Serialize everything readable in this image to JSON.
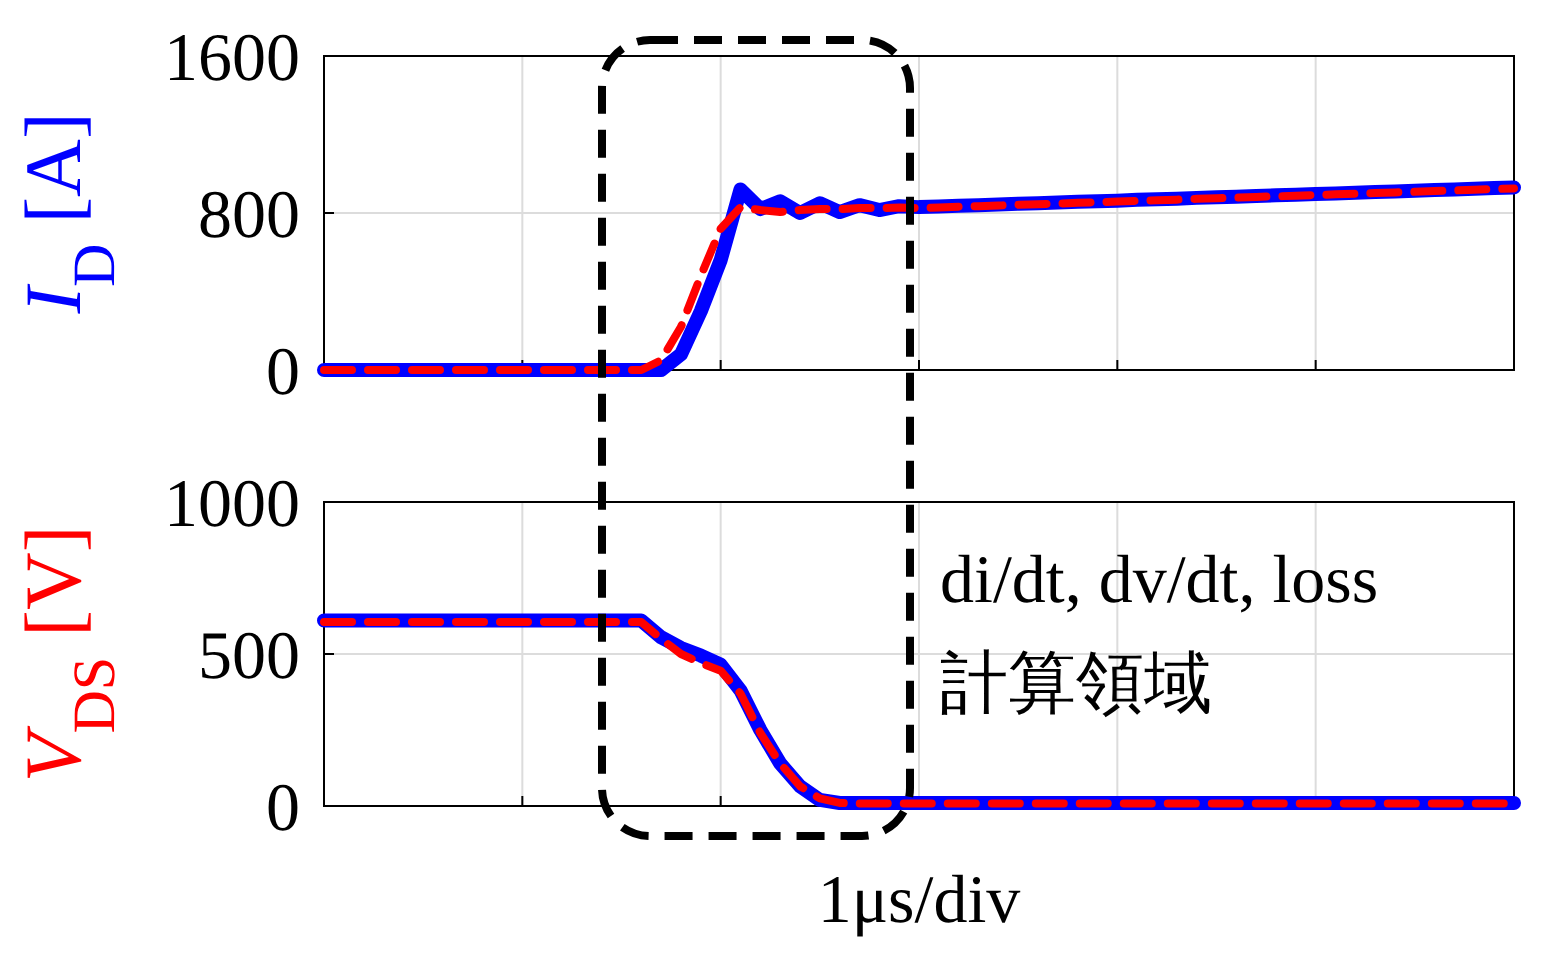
{
  "chart_data": [
    {
      "type": "line",
      "ylabel": "*I*$_{D}$ [A]",
      "categories": [
        null,
        null,
        null,
        null,
        null,
        null,
        null,
        null,
        null,
        null,
        null,
        null,
        null,
        null,
        null,
        null,
        null,
        null,
        null,
        null,
        null,
        null,
        null,
        null,
        null,
        null,
        null,
        null,
        null,
        null,
        null,
        null,
        null,
        null,
        null,
        null,
        null,
        null,
        null,
        null,
        null,
        null,
        null,
        null,
        null,
        null,
        null,
        null,
        null,
        null,
        null,
        null,
        null,
        null,
        null,
        null,
        null,
        null,
        null,
        null,
        null
      ],
      "ylim": [
        0,
        1600
      ],
      "yticks": [
        0,
        800,
        1600
      ],
      "grid": true,
      "tick_labels": "y",
      "series": [
        {
          "color": "#0000ff",
          "line_style": "solid",
          "values": [
            0,
            0,
            0,
            0,
            0,
            0,
            0,
            0,
            0,
            0,
            0,
            0,
            0,
            0,
            0,
            0,
            0,
            0,
            80,
            300,
            560,
            920,
            820,
            860,
            800,
            850,
            805,
            840,
            815,
            835,
            830,
            833,
            837,
            840,
            843,
            847,
            850,
            853,
            857,
            860,
            863,
            867,
            870,
            873,
            877,
            880,
            883,
            887,
            890,
            893,
            897,
            900,
            903,
            907,
            910,
            913,
            917,
            920,
            923,
            927,
            930
          ]
        },
        {
          "color": "#ff0000",
          "line_style": "dashed",
          "values": [
            0,
            0,
            0,
            0,
            0,
            0,
            0,
            0,
            0,
            0,
            0,
            0,
            0,
            0,
            0,
            0,
            0,
            50,
            220,
            480,
            720,
            830,
            815,
            805,
            815,
            820,
            820,
            825,
            825,
            828,
            825,
            828,
            832,
            835,
            838,
            842,
            845,
            848,
            852,
            855,
            858,
            862,
            865,
            868,
            872,
            875,
            878,
            882,
            885,
            888,
            892,
            895,
            898,
            902,
            905,
            908,
            912,
            915,
            918,
            922,
            925
          ]
        }
      ]
    },
    {
      "type": "line",
      "ylabel": "*V*$_{DS}$ [V]",
      "xlabel": "1μs/div",
      "annotations": [
        "di/dt, dv/dt, loss",
        "計算領域"
      ],
      "categories": [
        null,
        null,
        null,
        null,
        null,
        null,
        null,
        null,
        null,
        null,
        null,
        null,
        null,
        null,
        null,
        null,
        null,
        null,
        null,
        null,
        null,
        null,
        null,
        null,
        null,
        null,
        null,
        null,
        null,
        null,
        null,
        null,
        null,
        null,
        null,
        null,
        null,
        null,
        null,
        null,
        null,
        null,
        null,
        null,
        null,
        null,
        null,
        null,
        null,
        null,
        null,
        null,
        null,
        null,
        null,
        null,
        null,
        null,
        null,
        null,
        null
      ],
      "ylim": [
        0,
        1000
      ],
      "yticks": [
        0,
        500,
        1000
      ],
      "grid": true,
      "tick_labels": "y",
      "series": [
        {
          "color": "#0000ff",
          "line_style": "solid",
          "values": [
            610,
            610,
            610,
            610,
            610,
            610,
            610,
            610,
            610,
            610,
            610,
            610,
            610,
            610,
            610,
            610,
            610,
            555,
            520,
            495,
            465,
            380,
            250,
            140,
            65,
            20,
            10,
            10,
            10,
            10,
            10,
            10,
            10,
            10,
            10,
            10,
            10,
            10,
            10,
            10,
            10,
            10,
            10,
            10,
            10,
            10,
            10,
            10,
            10,
            10,
            10,
            10,
            10,
            10,
            10,
            10,
            10,
            10,
            10,
            10,
            10
          ]
        },
        {
          "color": "#ff0000",
          "line_style": "dashed",
          "values": [
            605,
            605,
            605,
            605,
            605,
            605,
            605,
            605,
            605,
            605,
            605,
            605,
            605,
            605,
            605,
            605,
            605,
            550,
            500,
            470,
            445,
            370,
            240,
            140,
            65,
            25,
            10,
            8,
            8,
            8,
            8,
            8,
            8,
            8,
            8,
            8,
            8,
            8,
            8,
            8,
            8,
            8,
            8,
            8,
            8,
            8,
            8,
            8,
            8,
            8,
            8,
            8,
            8,
            8,
            8,
            8,
            8,
            8,
            8,
            8,
            8
          ]
        }
      ]
    }
  ]
}
